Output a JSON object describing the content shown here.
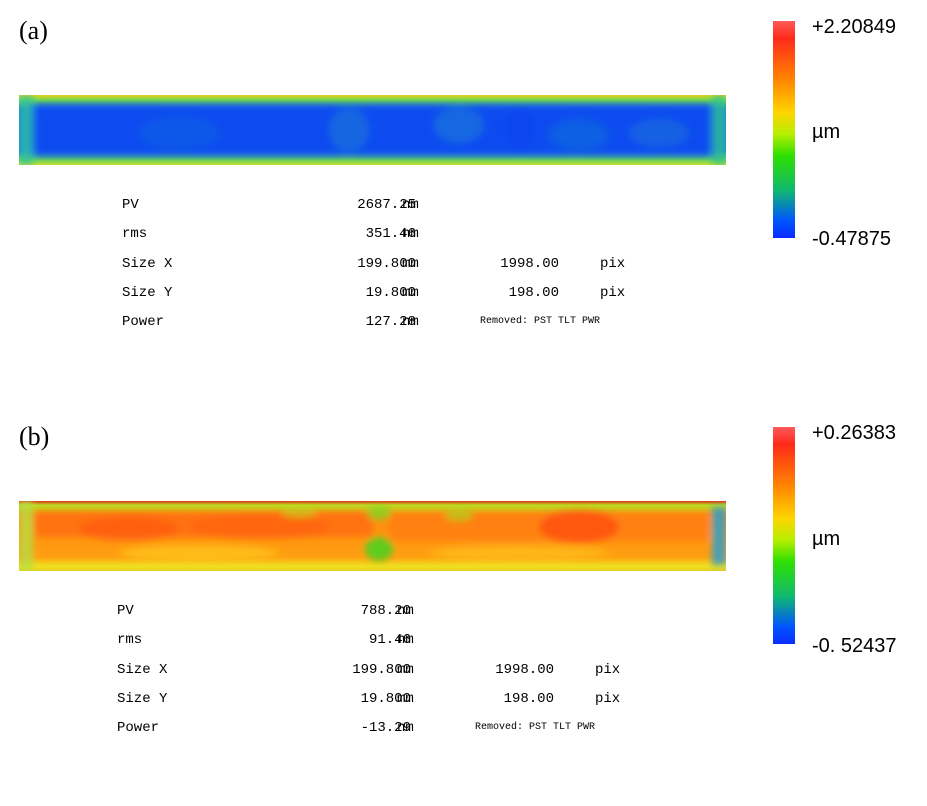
{
  "chart_data": [
    {
      "type": "heatmap",
      "panel_label": "(a)",
      "colorbar": {
        "max": "+2.20849",
        "min": "-0.47875",
        "unit": "µm"
      },
      "stats": [
        {
          "name": "PV",
          "value": "2687.25",
          "unit": "nm"
        },
        {
          "name": "rms",
          "value": "351.46",
          "unit": "nm"
        },
        {
          "name": "Size X",
          "value": "199.800",
          "unit": "mm",
          "pix": "1998.00",
          "pix_unit": "pix"
        },
        {
          "name": "Size Y",
          "value": "19.800",
          "unit": "mm",
          "pix": "198.00",
          "pix_unit": "pix"
        },
        {
          "name": "Power",
          "value": "127.28",
          "unit": "nm",
          "note": "Removed: PST TLT PWR"
        }
      ]
    },
    {
      "type": "heatmap",
      "panel_label": "(b)",
      "colorbar": {
        "max": "+0.26383",
        "min": "-0. 52437",
        "unit": "µm"
      },
      "stats": [
        {
          "name": "PV",
          "value": "788.20",
          "unit": "nm"
        },
        {
          "name": "rms",
          "value": "91.46",
          "unit": "nm"
        },
        {
          "name": "Size X",
          "value": "199.800",
          "unit": "mm",
          "pix": "1998.00",
          "pix_unit": "pix"
        },
        {
          "name": "Size Y",
          "value": "19.800",
          "unit": "mm",
          "pix": "198.00",
          "pix_unit": "pix"
        },
        {
          "name": "Power",
          "value": "-13.29",
          "unit": "nm",
          "note": "Removed: PST TLT PWR"
        }
      ]
    }
  ]
}
